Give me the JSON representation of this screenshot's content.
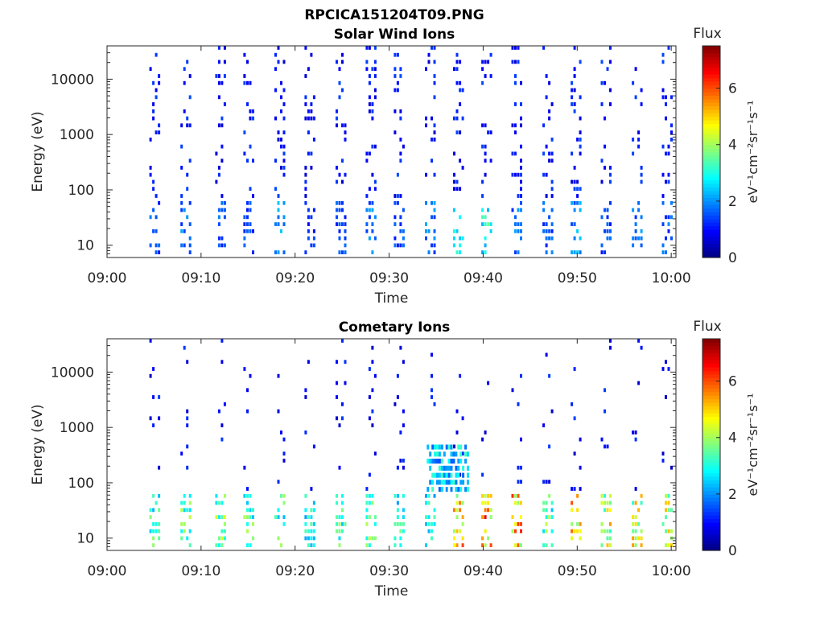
{
  "figure": {
    "suptitle": "RPCICA151204T09.PNG"
  },
  "colors": {
    "axis": "#262626",
    "background": "#ffffff"
  },
  "colorbar": {
    "title": "Flux",
    "label": "eV⁻¹cm⁻²sr⁻¹s⁻¹",
    "ticks": [
      "0",
      "2",
      "4",
      "6"
    ],
    "range": [
      0,
      7.5
    ],
    "colormap": "jet"
  },
  "chart_data": [
    {
      "type": "heatmap",
      "title": "Solar Wind Ions",
      "xlabel": "Time",
      "ylabel": "Energy (eV)",
      "x_ticks": [
        "09:00",
        "09:10",
        "09:20",
        "09:30",
        "09:40",
        "09:50",
        "10:00"
      ],
      "y_ticks": [
        "10",
        "100",
        "1000",
        "10000"
      ],
      "y_scale": "log",
      "ylim": [
        6,
        40000
      ],
      "xlim_minutes": [
        0,
        60.5
      ],
      "repeating_sweeps": [
        {
          "minute": 4.5,
          "flux": 2.0
        },
        {
          "minute": 7.8,
          "flux": 2.3
        },
        {
          "minute": 11.5,
          "flux": 2.0
        },
        {
          "minute": 14.5,
          "flux": 1.8
        },
        {
          "minute": 17.8,
          "flux": 2.5
        },
        {
          "minute": 21.0,
          "flux": 1.6
        },
        {
          "minute": 24.3,
          "flux": 1.8
        },
        {
          "minute": 27.5,
          "flux": 2.2
        },
        {
          "minute": 30.5,
          "flux": 2.0
        },
        {
          "minute": 33.8,
          "flux": 2.2
        },
        {
          "minute": 36.8,
          "flux": 3.2
        },
        {
          "minute": 39.8,
          "flux": 3.8
        },
        {
          "minute": 43.0,
          "flux": 2.2
        },
        {
          "minute": 46.3,
          "flux": 2.0
        },
        {
          "minute": 49.3,
          "flux": 2.5
        },
        {
          "minute": 52.5,
          "flux": 1.8
        },
        {
          "minute": 55.8,
          "flux": 2.2
        },
        {
          "minute": 59.0,
          "flux": 2.0
        }
      ],
      "peak_flux": 3.8
    },
    {
      "type": "heatmap",
      "title": "Cometary Ions",
      "xlabel": "Time",
      "ylabel": "Energy (eV)",
      "x_ticks": [
        "09:00",
        "09:10",
        "09:20",
        "09:30",
        "09:40",
        "09:50",
        "10:00"
      ],
      "y_ticks": [
        "10",
        "100",
        "1000",
        "10000"
      ],
      "y_scale": "log",
      "ylim": [
        6,
        40000
      ],
      "xlim_minutes": [
        0,
        60.5
      ],
      "repeating_sweeps": [
        {
          "minute": 4.5,
          "flux": 4.0
        },
        {
          "minute": 7.8,
          "flux": 4.5
        },
        {
          "minute": 11.5,
          "flux": 4.5
        },
        {
          "minute": 14.5,
          "flux": 4.2
        },
        {
          "minute": 17.8,
          "flux": 4.0
        },
        {
          "minute": 21.0,
          "flux": 3.5
        },
        {
          "minute": 24.3,
          "flux": 4.0
        },
        {
          "minute": 27.5,
          "flux": 4.5
        },
        {
          "minute": 30.5,
          "flux": 3.8
        },
        {
          "minute": 33.8,
          "flux": 3.5
        },
        {
          "minute": 36.8,
          "flux": 6.5
        },
        {
          "minute": 39.8,
          "flux": 6.8
        },
        {
          "minute": 43.0,
          "flux": 6.8
        },
        {
          "minute": 46.3,
          "flux": 4.2
        },
        {
          "minute": 49.3,
          "flux": 6.2
        },
        {
          "minute": 52.5,
          "flux": 5.5
        },
        {
          "minute": 55.8,
          "flux": 5.5
        },
        {
          "minute": 59.0,
          "flux": 5.2
        }
      ],
      "enhanced_region": {
        "minutes": [
          34,
          38.5
        ],
        "energy_eV": [
          60,
          500
        ],
        "flux": 3.0
      },
      "peak_flux": 6.8
    }
  ]
}
